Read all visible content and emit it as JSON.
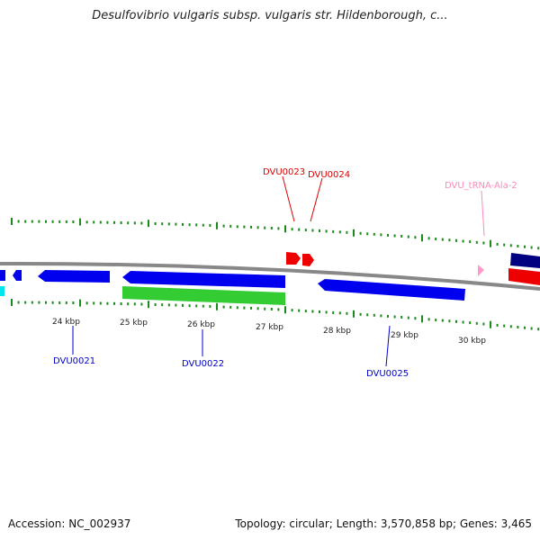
{
  "title": "Desulfovibrio vulgaris subsp. vulgaris str. Hildenborough, c...",
  "footer": {
    "accession": "Accession: NC_002937",
    "summary": "Topology: circular; Length: 3,570,858 bp; Genes: 3,465"
  },
  "colors": {
    "backbone": "#888888",
    "tick": "#1a8a1a",
    "cds_forward": "#0000ee",
    "cds_reverse_green": "#33cc33",
    "red_gene": "#ee0000",
    "trna": "#ff99cc",
    "navy": "#000080",
    "cyan": "#00e5ee",
    "label_blue": "#0000cc",
    "label_red": "#dd0000",
    "label_pink": "#ff88bb"
  },
  "kbp_ticks": [
    "24 kbp",
    "25 kbp",
    "26 kbp",
    "27 kbp",
    "28 kbp",
    "29 kbp",
    "30 kbp"
  ],
  "genes": [
    {
      "label": "DVU0021",
      "color": "label_blue"
    },
    {
      "label": "DVU0022",
      "color": "label_blue"
    },
    {
      "label": "DVU0023",
      "color": "label_red"
    },
    {
      "label": "DVU0024",
      "color": "label_red"
    },
    {
      "label": "DVU_tRNA-Ala-2",
      "color": "label_pink"
    },
    {
      "label": "DVU0025",
      "color": "label_blue"
    }
  ]
}
